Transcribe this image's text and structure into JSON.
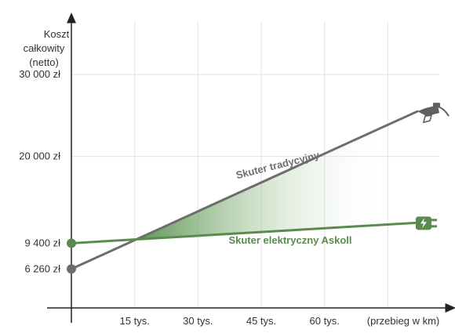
{
  "chart_data": {
    "type": "line",
    "ylabel_lines": [
      "Koszt",
      "całkowity",
      "(netto)"
    ],
    "xlabel": "(przebieg w km)",
    "x_ticks": [
      "15 tys.",
      "30 tys.",
      "45 tys.",
      "60 tys."
    ],
    "x_tick_values": [
      15000,
      30000,
      45000,
      60000
    ],
    "y_ticks": [
      {
        "value": 6260,
        "label": "6 260 zł",
        "highlight": false
      },
      {
        "value": 9400,
        "label": "9 400 zł",
        "highlight": true
      },
      {
        "value": 20000,
        "label": "20 000 zł",
        "highlight": false
      },
      {
        "value": 30000,
        "label": "30 000 zł",
        "highlight": false
      }
    ],
    "xlim": [
      0,
      90000
    ],
    "ylim": [
      1500,
      37000
    ],
    "grid": true,
    "series": [
      {
        "name": "Skuter tradycyjny",
        "color": "#6d6d6d",
        "icon": "fuel-nozzle-icon",
        "points": [
          [
            0,
            6260
          ],
          [
            82000,
            25500
          ]
        ]
      },
      {
        "name": "Skuter elektryczny Askoll",
        "color": "#5a8a4e",
        "icon": "electric-plug-icon",
        "points": [
          [
            0,
            9400
          ],
          [
            82000,
            11900
          ]
        ]
      }
    ],
    "colors": {
      "axis": "#222222",
      "grid": "#e2e2e2",
      "shade": "#4a8a40",
      "highlight_label": "#5a8a4e"
    }
  }
}
